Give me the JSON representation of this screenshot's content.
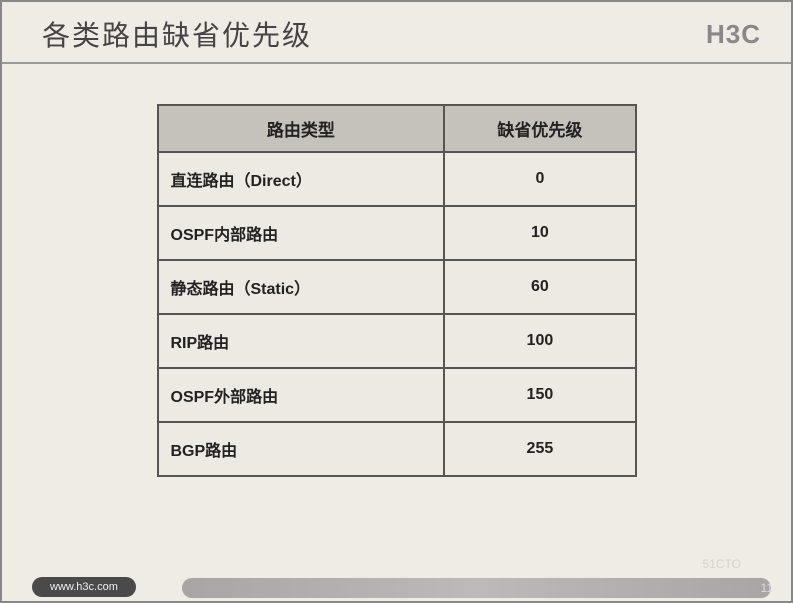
{
  "header": {
    "title": "各类路由缺省优先级",
    "logo": "H3C"
  },
  "table": {
    "columns": [
      "路由类型",
      "缺省优先级"
    ],
    "rows": [
      {
        "type": "直连路由（Direct）",
        "priority": "0"
      },
      {
        "type": "OSPF内部路由",
        "priority": "10"
      },
      {
        "type": "静态路由（Static）",
        "priority": "60"
      },
      {
        "type": "RIP路由",
        "priority": "100"
      },
      {
        "type": "OSPF外部路由",
        "priority": "150"
      },
      {
        "type": "BGP路由",
        "priority": "255"
      }
    ],
    "header_bg": "#c5c2bc",
    "cell_bg": "#edeae4",
    "border_color": "#555555",
    "font_size": 16
  },
  "footer": {
    "url": "www.h3c.com",
    "page_number": "11"
  },
  "watermark": "51CTO"
}
